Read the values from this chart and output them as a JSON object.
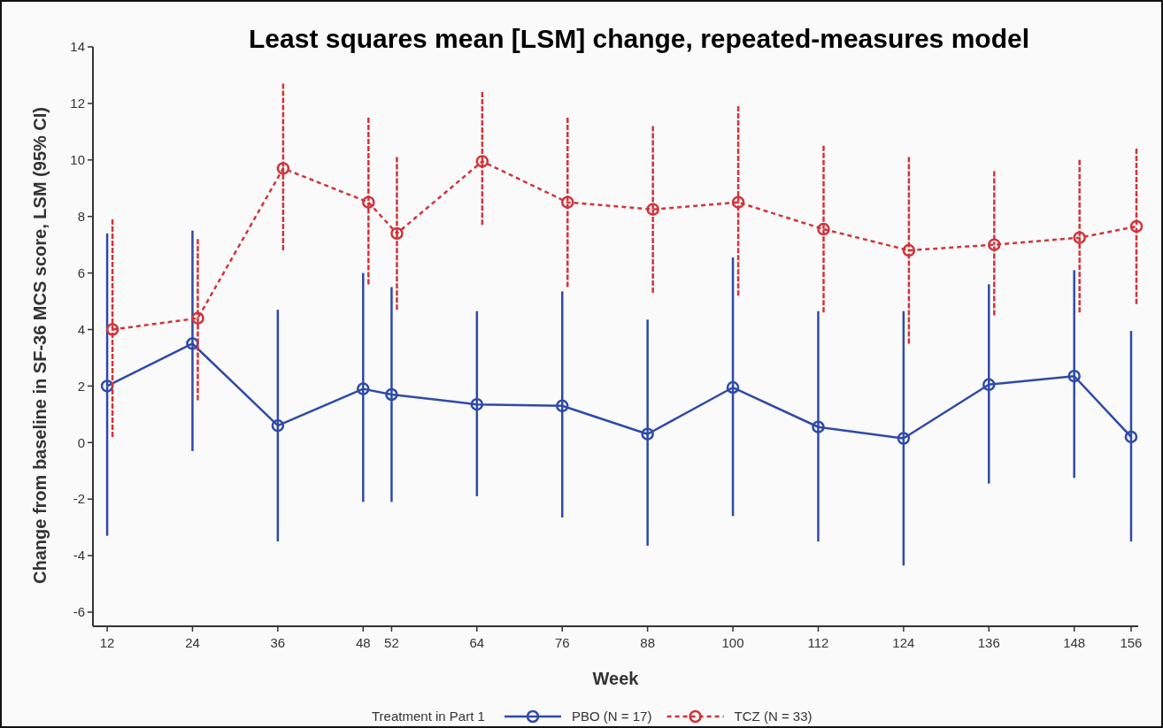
{
  "chart_data": {
    "type": "line",
    "title": "Least squares mean [LSM] change, repeated-measures model",
    "xlabel": "Week",
    "ylabel": "Change from baseline in SF-36 MCS score, LSM (95% CI)",
    "legend_title": "Treatment in Part 1",
    "legend": "bottom",
    "marker": "circle",
    "grid": false,
    "xlim": [
      10,
      157
    ],
    "xticks": [
      12,
      24,
      36,
      48,
      52,
      64,
      76,
      88,
      100,
      112,
      124,
      136,
      148,
      156
    ],
    "ylim": [
      -6.5,
      14
    ],
    "yticks": [
      -6,
      -4,
      -2,
      0,
      2,
      4,
      6,
      8,
      10,
      12,
      14
    ],
    "series": [
      {
        "name": "PBO (N = 17)",
        "color": "#2e4aa8",
        "line_style": "solid",
        "x": [
          12,
          24,
          36,
          48,
          52,
          64,
          76,
          88,
          100,
          112,
          124,
          136,
          148,
          156
        ],
        "values": [
          2.0,
          3.5,
          0.6,
          1.9,
          1.7,
          1.35,
          1.3,
          0.3,
          1.95,
          0.55,
          0.15,
          2.05,
          2.35,
          0.2
        ],
        "errors": [
          [
            -3.3,
            7.4
          ],
          [
            -0.3,
            7.5
          ],
          [
            -3.5,
            4.7
          ],
          [
            -2.1,
            6.0
          ],
          [
            -2.1,
            5.5
          ],
          [
            -1.9,
            4.65
          ],
          [
            -2.65,
            5.35
          ],
          [
            -3.65,
            4.35
          ],
          [
            -2.6,
            6.55
          ],
          [
            -3.5,
            4.65
          ],
          [
            -4.35,
            4.65
          ],
          [
            -1.45,
            5.6
          ],
          [
            -1.25,
            6.1
          ],
          [
            -3.5,
            3.95
          ]
        ]
      },
      {
        "name": "TCZ (N = 33)",
        "color": "#d0343a",
        "line_style": "dashed",
        "x": [
          12.75,
          24.75,
          36.75,
          48.75,
          52.75,
          64.75,
          76.75,
          88.75,
          100.75,
          112.75,
          124.75,
          136.75,
          148.75,
          156.75
        ],
        "values": [
          4.0,
          4.4,
          9.7,
          8.5,
          7.4,
          9.95,
          8.5,
          8.25,
          8.5,
          7.55,
          6.8,
          7.0,
          7.25,
          7.65
        ],
        "errors": [
          [
            0.2,
            7.9
          ],
          [
            1.5,
            7.2
          ],
          [
            6.8,
            12.7
          ],
          [
            5.6,
            11.5
          ],
          [
            4.7,
            10.1
          ],
          [
            7.7,
            12.4
          ],
          [
            5.5,
            11.5
          ],
          [
            5.3,
            11.2
          ],
          [
            5.2,
            11.9
          ],
          [
            4.6,
            10.5
          ],
          [
            3.5,
            10.1
          ],
          [
            4.5,
            9.6
          ],
          [
            4.6,
            10.0
          ],
          [
            4.9,
            10.4
          ]
        ]
      }
    ]
  }
}
